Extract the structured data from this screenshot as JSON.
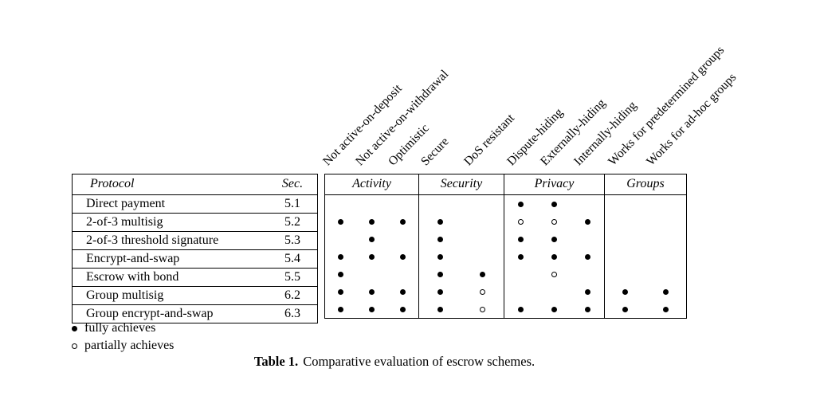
{
  "table": {
    "caption_label": "Table 1.",
    "caption_text": "Comparative evaluation of escrow schemes.",
    "left_header": {
      "protocol": "Protocol",
      "sec": "Sec."
    },
    "groups": [
      {
        "label": "Activity",
        "cols": 3
      },
      {
        "label": "Security",
        "cols": 2
      },
      {
        "label": "Privacy",
        "cols": 3
      },
      {
        "label": "Groups",
        "cols": 2
      }
    ],
    "columns": [
      "Not active-on-deposit",
      "Not active-on-withdrawal",
      "Optimistic",
      "Secure",
      "DoS resistant",
      "Dispute-hiding",
      "Externally-hiding",
      "Internally-hiding",
      "Works for predetermined groups",
      "Works for ad-hoc groups"
    ],
    "rows": [
      {
        "protocol": "Direct payment",
        "sec": "5.1",
        "marks": [
          "",
          "",
          "",
          "",
          "",
          "F",
          "F",
          "",
          "",
          ""
        ]
      },
      {
        "protocol": "2-of-3 multisig",
        "sec": "5.2",
        "marks": [
          "F",
          "F",
          "F",
          "F",
          "",
          "P",
          "P",
          "F",
          "",
          ""
        ]
      },
      {
        "protocol": "2-of-3 threshold signature",
        "sec": "5.3",
        "marks": [
          "",
          "F",
          "",
          "F",
          "",
          "F",
          "F",
          "",
          "",
          ""
        ]
      },
      {
        "protocol": "Encrypt-and-swap",
        "sec": "5.4",
        "marks": [
          "F",
          "F",
          "F",
          "F",
          "",
          "F",
          "F",
          "F",
          "",
          ""
        ]
      },
      {
        "protocol": "Escrow with bond",
        "sec": "5.5",
        "marks": [
          "F",
          "",
          "",
          "F",
          "F",
          "",
          "P",
          "",
          "",
          ""
        ]
      },
      {
        "protocol": "Group multisig",
        "sec": "6.2",
        "marks": [
          "F",
          "F",
          "F",
          "F",
          "P",
          "",
          "",
          "F",
          "F",
          "F"
        ]
      },
      {
        "protocol": "Group encrypt-and-swap",
        "sec": "6.3",
        "marks": [
          "F",
          "F",
          "F",
          "F",
          "P",
          "F",
          "F",
          "F",
          "F",
          "F"
        ]
      }
    ],
    "legend": [
      {
        "symbol": "full",
        "text": "fully achieves"
      },
      {
        "symbol": "partial",
        "text": "partially achieves"
      }
    ]
  }
}
